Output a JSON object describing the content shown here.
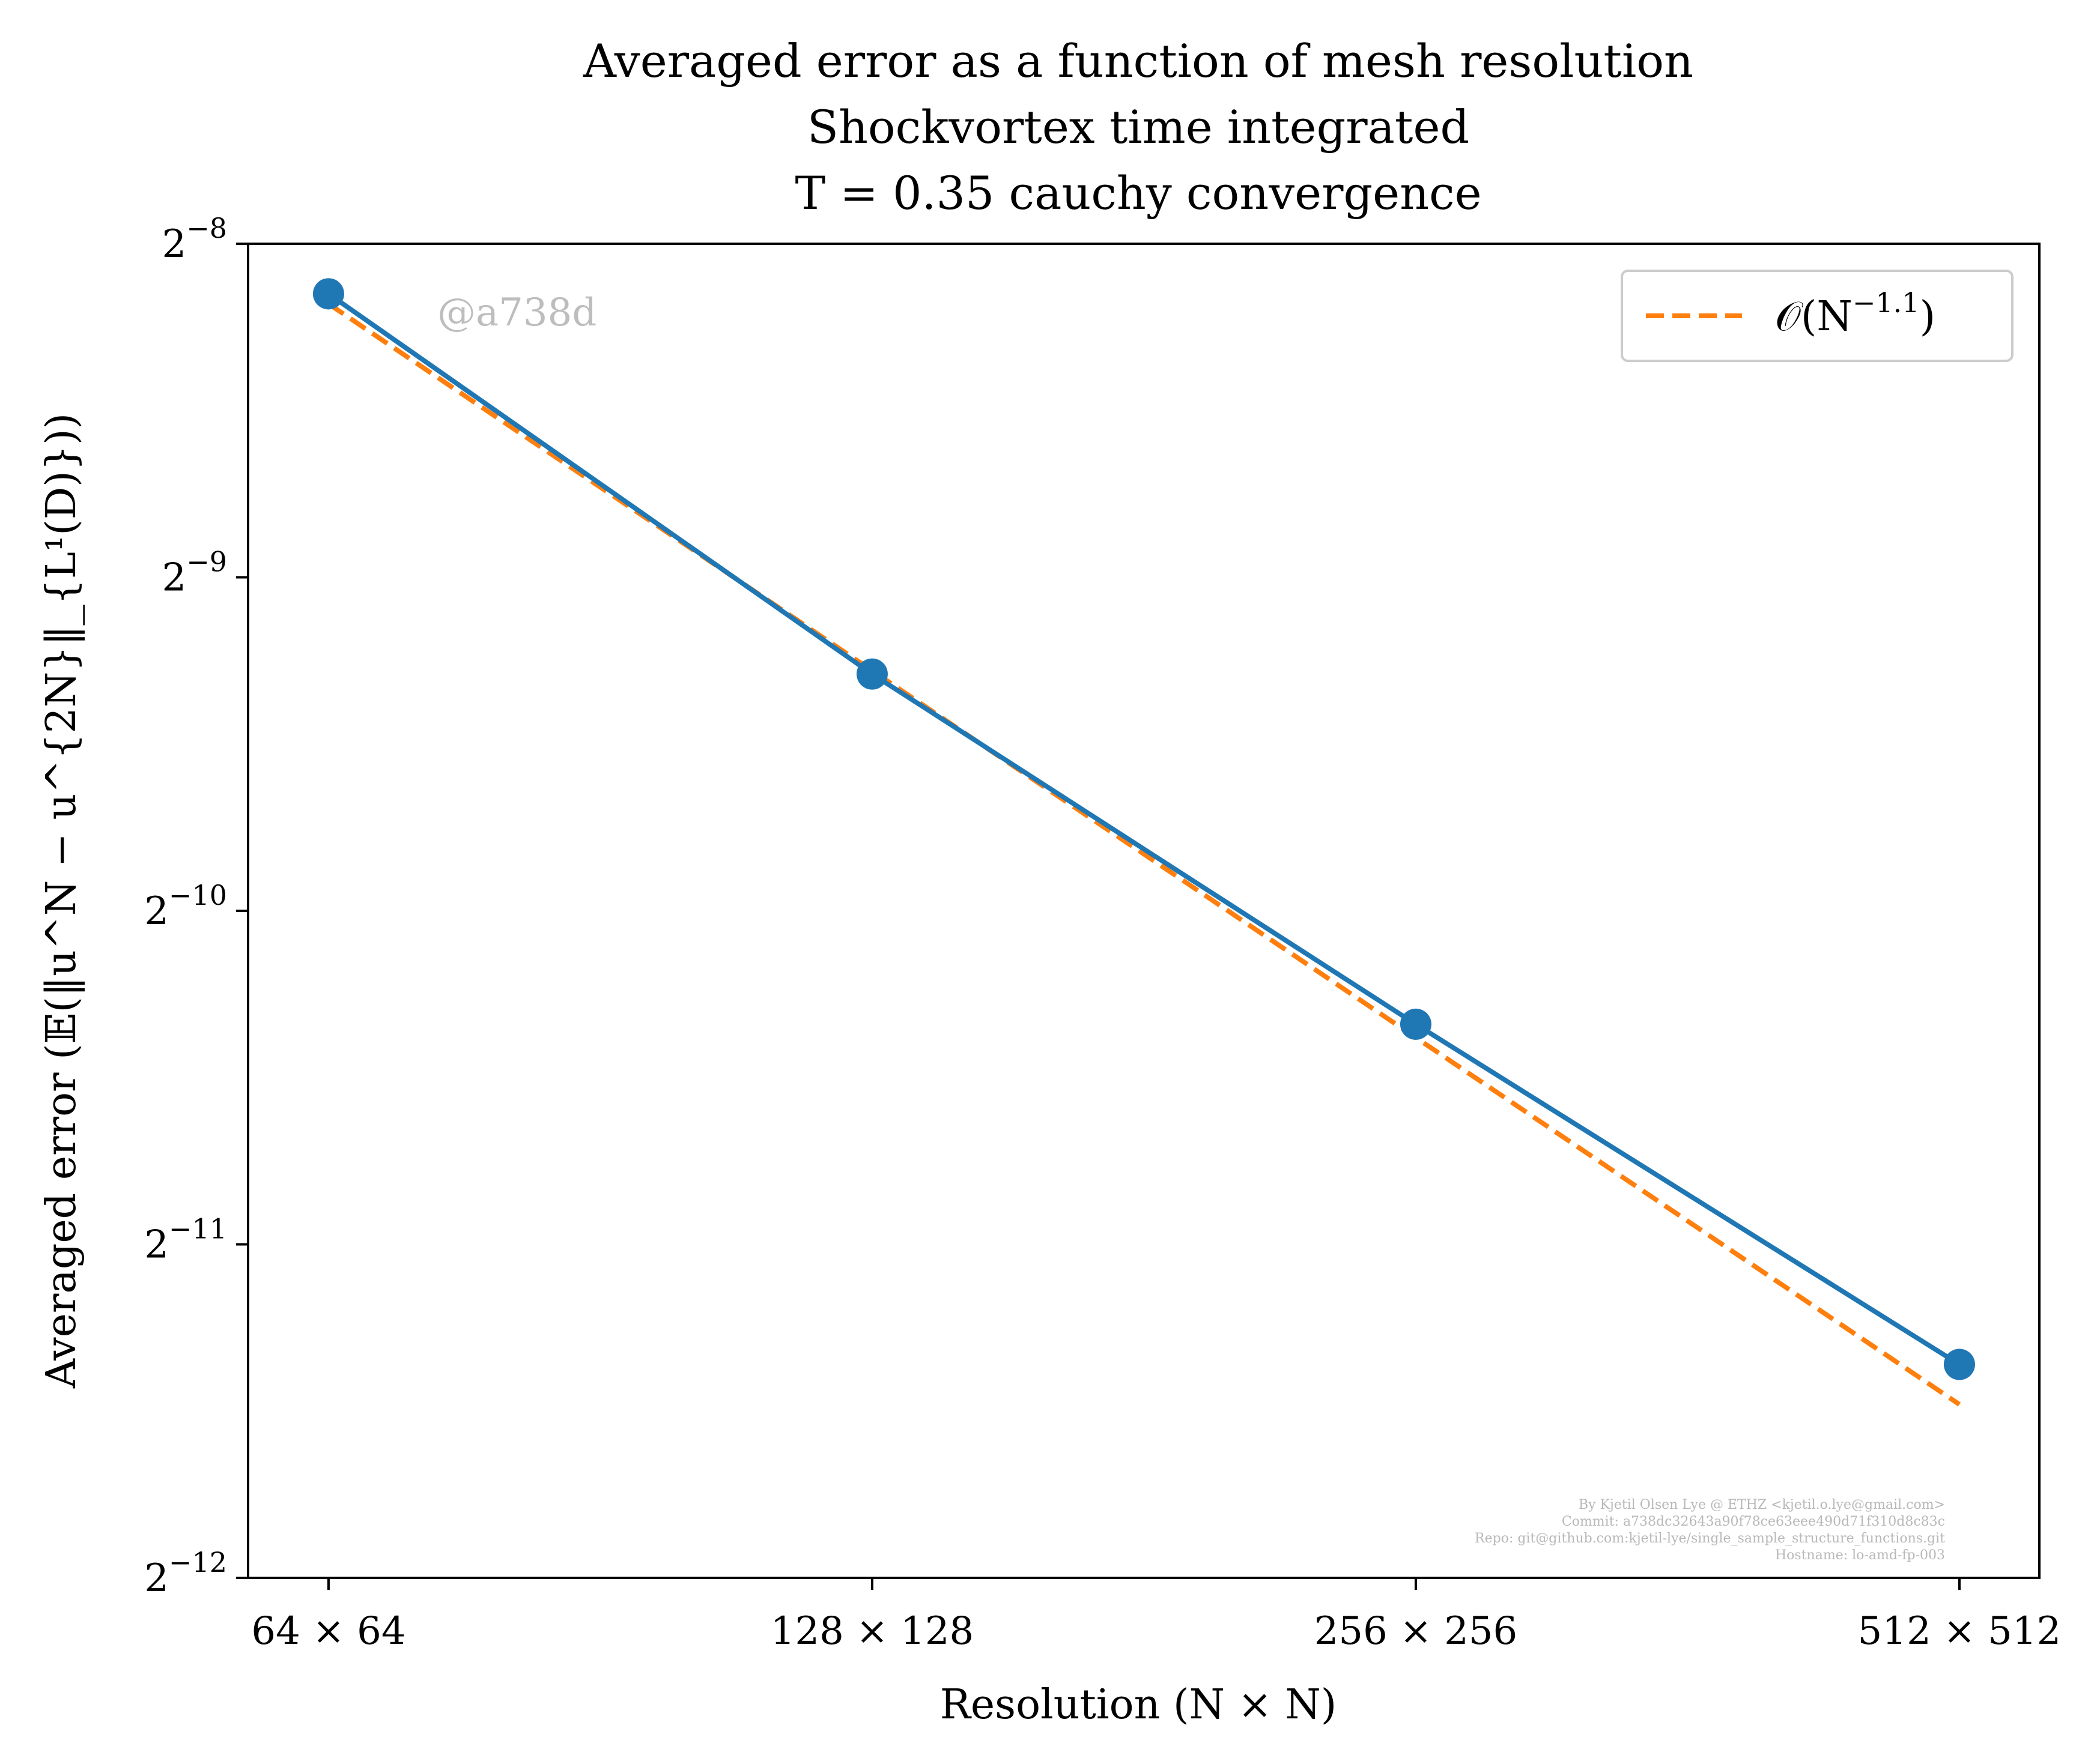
{
  "chart_data": {
    "type": "line",
    "title_lines": [
      "Averaged error as a function of mesh resolution",
      "Shockvortex time integrated",
      "T = 0.35 cauchy convergence"
    ],
    "xlabel": "Resolution (N × N)",
    "ylabel": "Averaged error (𝔼(‖u^N − u^{2N}‖_{L¹(D)}))",
    "x_scale": "log2",
    "y_scale": "log2",
    "x_ticks": [
      {
        "value": 64,
        "label": "64 × 64"
      },
      {
        "value": 128,
        "label": "128 × 128"
      },
      {
        "value": 256,
        "label": "256 × 256"
      },
      {
        "value": 512,
        "label": "512 × 512"
      }
    ],
    "y_ticks": [
      {
        "exp": -8,
        "base": "2",
        "sup": "−8"
      },
      {
        "exp": -9,
        "base": "2",
        "sup": "−9"
      },
      {
        "exp": -10,
        "base": "2",
        "sup": "−10"
      },
      {
        "exp": -11,
        "base": "2",
        "sup": "−11"
      },
      {
        "exp": -12,
        "base": "2",
        "sup": "−12"
      }
    ],
    "xlim_log2": [
      5.852,
      9.147
    ],
    "ylim_log2": [
      -12,
      -8
    ],
    "grid": false,
    "legend_position": "top-right",
    "series": [
      {
        "kind": "error",
        "color": "#1f77b4",
        "style": "solid-with-markers",
        "x": [
          64,
          128,
          256,
          512
        ],
        "y_log2": [
          -8.15,
          -9.29,
          -10.34,
          -11.36
        ]
      },
      {
        "kind": "reference",
        "name": "𝒪(N^{-1.1})",
        "color": "#ff7f0e",
        "style": "dashed",
        "x": [
          64,
          128,
          256,
          512
        ],
        "y_log2": [
          -8.18,
          -9.28,
          -10.38,
          -11.48
        ]
      }
    ],
    "legend": {
      "entry_main": "𝒪(N",
      "entry_sup": "−1.1",
      "entry_close": ")"
    },
    "watermark": "@a738d",
    "credit_lines": [
      "By Kjetil Olsen Lye @ ETHZ <kjetil.o.lye@gmail.com>",
      "Commit: a738dc32643a90f78ce63eee490d71f310d8c83c",
      "Repo: git@github.com:kjetil-lye/single_sample_structure_functions.git",
      "Hostname: lo-amd-fp-003"
    ]
  }
}
